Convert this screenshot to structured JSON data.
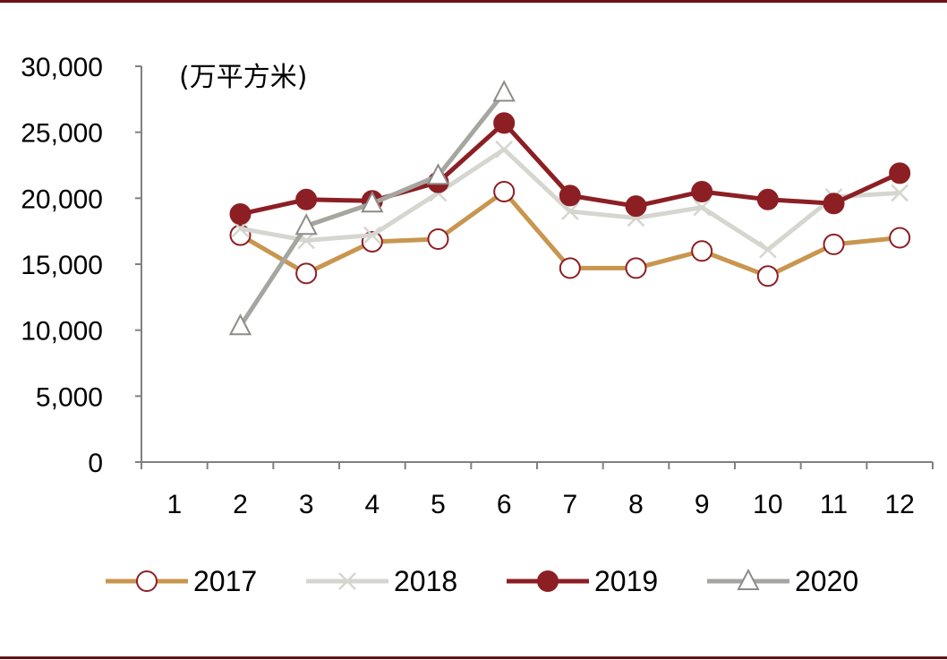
{
  "chart_data": {
    "type": "line",
    "unit_label": "(万平方米)",
    "categories": [
      "1",
      "2",
      "3",
      "4",
      "5",
      "6",
      "7",
      "8",
      "9",
      "10",
      "11",
      "12"
    ],
    "y_ticks": [
      "0",
      "5,000",
      "10,000",
      "15,000",
      "20,000",
      "25,000",
      "30,000"
    ],
    "ylim": [
      0,
      30000
    ],
    "grid": false,
    "legend_position": "bottom",
    "series": [
      {
        "name": "2017",
        "color": "#c8964f",
        "marker": "open-circle",
        "values": [
          null,
          17200,
          14300,
          16700,
          16900,
          20500,
          14700,
          14700,
          16000,
          14100,
          16500,
          17000
        ]
      },
      {
        "name": "2018",
        "color": "#d6d6d0",
        "marker": "cross",
        "values": [
          null,
          17700,
          16800,
          17200,
          20400,
          23700,
          19000,
          18500,
          19300,
          16100,
          20100,
          20400
        ]
      },
      {
        "name": "2019",
        "color": "#8c1f24",
        "marker": "filled-circle",
        "values": [
          null,
          18800,
          19900,
          19800,
          21200,
          25700,
          20200,
          19400,
          20500,
          19900,
          19600,
          21900
        ]
      },
      {
        "name": "2020",
        "color": "#a6a6a0",
        "marker": "open-triangle",
        "values": [
          null,
          10300,
          17900,
          19600,
          21700,
          28000,
          null,
          null,
          null,
          null,
          null,
          null
        ]
      }
    ]
  },
  "colors": {
    "rule": "#6b1016",
    "axis": "#808080"
  }
}
